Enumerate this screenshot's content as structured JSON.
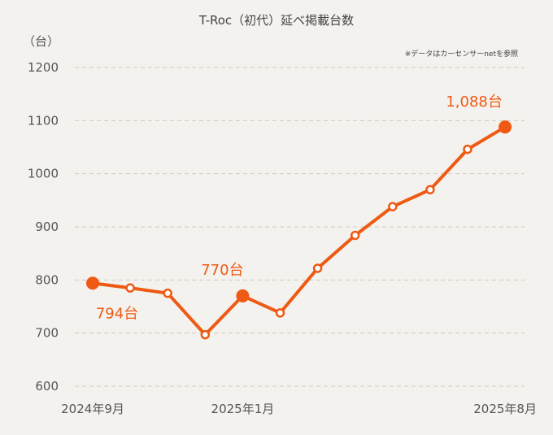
{
  "chart_data": {
    "type": "line",
    "title": "T-Roc（初代）延べ掲載台数",
    "unit_label": "（台）",
    "note": "※データはカーセンサーnetを参照",
    "ylim": [
      600,
      1200
    ],
    "y_ticks": [
      "600",
      "700",
      "800",
      "900",
      "1000",
      "1100",
      "1200"
    ],
    "x_tick_labels": [
      {
        "index": 0,
        "label": "2024年9月"
      },
      {
        "index": 4,
        "label": "2025年1月"
      },
      {
        "index": 11,
        "label": "2025年8月"
      }
    ],
    "grid": true,
    "color": "#ee5a14",
    "series": [
      {
        "values": [
          794,
          785,
          775,
          697,
          770,
          738,
          822,
          884,
          938,
          970,
          1046,
          1088
        ]
      }
    ],
    "highlights": [
      {
        "index": 0,
        "label": "794台"
      },
      {
        "index": 4,
        "label": "770台"
      },
      {
        "index": 11,
        "label": "1,088台"
      }
    ]
  }
}
